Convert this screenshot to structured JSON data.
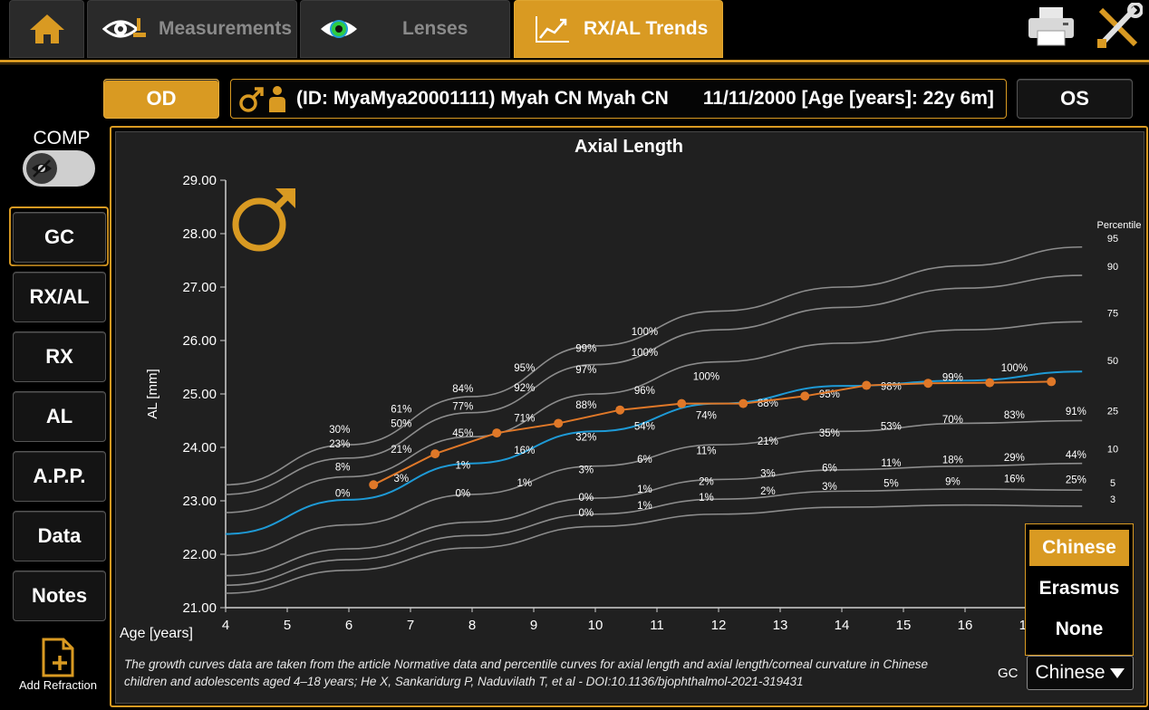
{
  "tabs": [
    {
      "label": ""
    },
    {
      "label": "Measurements"
    },
    {
      "label": "Lenses"
    },
    {
      "label": "RX/AL Trends"
    }
  ],
  "eye_buttons": {
    "od": "OD",
    "os": "OS"
  },
  "patient": {
    "text": "(ID: MyaMya20001111) Myah CN Myah CN",
    "dob": "11/11/2000 [Age [years]: 22y 6m]"
  },
  "comp": {
    "label": "COMP"
  },
  "sidebar": {
    "items": [
      {
        "label": "GC"
      },
      {
        "label": "RX/AL"
      },
      {
        "label": "RX"
      },
      {
        "label": "AL"
      },
      {
        "label": "A.P.P."
      },
      {
        "label": "Data"
      },
      {
        "label": "Notes"
      }
    ]
  },
  "add_refraction": {
    "label": "Add Refraction"
  },
  "gc_selector": {
    "label": "GC",
    "options": [
      "Chinese",
      "Erasmus",
      "None"
    ],
    "selected": "Chinese",
    "dropdown_value": "Chinese"
  },
  "footnote": {
    "line1": "The growth curves data are taken from the article Normative data and percentile curves for axial length and axial length/corneal curvature in Chinese",
    "line2": "children and adolescents aged 4–18 years; He X, Sankaridurg P, Naduvilath T, et al - DOI:10.1136/bjophthalmol-2021-319431"
  },
  "colors": {
    "accent": "#d99a22",
    "patient_line": "#e07828",
    "median_line": "#1e9ad6",
    "curves": "#8c8c8c"
  },
  "chart_data": {
    "type": "line",
    "title": "Axial Length",
    "xlabel": "Age [years]",
    "ylabel": "AL [mm]",
    "xlim": [
      4,
      17.9
    ],
    "ylim": [
      21.0,
      29.0
    ],
    "x_ticks": [
      4,
      5,
      6,
      7,
      8,
      9,
      10,
      11,
      12,
      13,
      14,
      15,
      16,
      17
    ],
    "y_ticks": [
      "21.00",
      "22.00",
      "23.00",
      "24.00",
      "25.00",
      "26.00",
      "27.00",
      "28.00",
      "29.00"
    ],
    "legend_title": "Percentile",
    "percentile_curves": [
      {
        "name": "95",
        "x": [
          4,
          6,
          8,
          10,
          12,
          14,
          16,
          17.9
        ],
        "values": [
          23.3,
          24.05,
          24.95,
          25.9,
          26.55,
          27.0,
          27.4,
          27.75
        ]
      },
      {
        "name": "90",
        "x": [
          4,
          6,
          8,
          10,
          12,
          14,
          16,
          17.9
        ],
        "values": [
          23.12,
          23.8,
          24.65,
          25.55,
          26.2,
          26.62,
          26.98,
          27.22
        ]
      },
      {
        "name": "75",
        "x": [
          4,
          6,
          8,
          10,
          12,
          14,
          16,
          17.9
        ],
        "values": [
          22.78,
          23.45,
          24.2,
          25.0,
          25.6,
          25.95,
          26.2,
          26.35
        ]
      },
      {
        "name": "50",
        "x": [
          4,
          6,
          8,
          10,
          12,
          14,
          16,
          17.9
        ],
        "values": [
          22.38,
          23.02,
          23.7,
          24.3,
          24.82,
          25.15,
          25.25,
          25.42
        ]
      },
      {
        "name": "25",
        "x": [
          4,
          6,
          8,
          10,
          12,
          14,
          16,
          17.9
        ],
        "values": [
          21.98,
          22.55,
          23.12,
          23.65,
          24.05,
          24.3,
          24.45,
          24.5
        ]
      },
      {
        "name": "10",
        "x": [
          4,
          6,
          8,
          10,
          12,
          14,
          16,
          17.9
        ],
        "values": [
          21.6,
          22.1,
          22.6,
          23.05,
          23.4,
          23.58,
          23.65,
          23.7
        ]
      },
      {
        "name": "5",
        "x": [
          4,
          6,
          8,
          10,
          12,
          14,
          16,
          17.9
        ],
        "values": [
          21.42,
          21.9,
          22.35,
          22.75,
          23.03,
          23.18,
          23.22,
          23.2
        ]
      },
      {
        "name": "3",
        "x": [
          4,
          6,
          8,
          10,
          12,
          14,
          16,
          17.9
        ],
        "values": [
          21.27,
          21.7,
          22.12,
          22.52,
          22.75,
          22.88,
          22.92,
          22.9
        ]
      }
    ],
    "patient_series": {
      "x": [
        6.4,
        7.4,
        8.4,
        9.4,
        10.4,
        11.4,
        12.4,
        13.4,
        14.4,
        15.4,
        16.4,
        17.4
      ],
      "values": [
        23.3,
        23.88,
        24.27,
        24.45,
        24.7,
        24.82,
        24.82,
        24.96,
        25.16,
        25.2,
        25.21,
        25.23
      ]
    },
    "annotations": [
      {
        "text": "30%",
        "x": 5.85,
        "y": 24.27
      },
      {
        "text": "23%",
        "x": 5.85,
        "y": 24.0
      },
      {
        "text": "8%",
        "x": 5.9,
        "y": 23.57
      },
      {
        "text": "0%",
        "x": 5.9,
        "y": 23.08
      },
      {
        "text": "61%",
        "x": 6.85,
        "y": 24.65
      },
      {
        "text": "50%",
        "x": 6.85,
        "y": 24.38
      },
      {
        "text": "21%",
        "x": 6.85,
        "y": 23.9
      },
      {
        "text": "3%",
        "x": 6.85,
        "y": 23.36
      },
      {
        "text": "84%",
        "x": 7.85,
        "y": 25.03
      },
      {
        "text": "77%",
        "x": 7.85,
        "y": 24.7
      },
      {
        "text": "45%",
        "x": 7.85,
        "y": 24.2
      },
      {
        "text": "1%",
        "x": 7.85,
        "y": 23.6
      },
      {
        "text": "0%",
        "x": 7.85,
        "y": 23.08
      },
      {
        "text": "95%",
        "x": 8.85,
        "y": 25.42
      },
      {
        "text": "92%",
        "x": 8.85,
        "y": 25.05
      },
      {
        "text": "71%",
        "x": 8.85,
        "y": 24.48
      },
      {
        "text": "16%",
        "x": 8.85,
        "y": 23.88
      },
      {
        "text": "1%",
        "x": 8.85,
        "y": 23.27
      },
      {
        "text": "99%",
        "x": 9.85,
        "y": 25.79
      },
      {
        "text": "97%",
        "x": 9.85,
        "y": 25.39
      },
      {
        "text": "88%",
        "x": 9.85,
        "y": 24.73
      },
      {
        "text": "32%",
        "x": 9.85,
        "y": 24.13
      },
      {
        "text": "3%",
        "x": 9.85,
        "y": 23.52
      },
      {
        "text": "0%",
        "x": 9.85,
        "y": 23.0
      },
      {
        "text": "0%",
        "x": 9.85,
        "y": 22.71
      },
      {
        "text": "100%",
        "x": 10.8,
        "y": 26.1
      },
      {
        "text": "100%",
        "x": 10.8,
        "y": 25.71
      },
      {
        "text": "96%",
        "x": 10.8,
        "y": 25.0
      },
      {
        "text": "54%",
        "x": 10.8,
        "y": 24.33
      },
      {
        "text": "6%",
        "x": 10.8,
        "y": 23.71
      },
      {
        "text": "1%",
        "x": 10.8,
        "y": 23.15
      },
      {
        "text": "1%",
        "x": 10.8,
        "y": 22.85
      },
      {
        "text": "100%",
        "x": 11.8,
        "y": 25.26
      },
      {
        "text": "74%",
        "x": 11.8,
        "y": 24.53
      },
      {
        "text": "11%",
        "x": 11.8,
        "y": 23.87
      },
      {
        "text": "2%",
        "x": 11.8,
        "y": 23.3
      },
      {
        "text": "1%",
        "x": 11.8,
        "y": 23.0
      },
      {
        "text": "88%",
        "x": 12.8,
        "y": 24.76
      },
      {
        "text": "21%",
        "x": 12.8,
        "y": 24.05
      },
      {
        "text": "3%",
        "x": 12.8,
        "y": 23.45
      },
      {
        "text": "2%",
        "x": 12.8,
        "y": 23.12
      },
      {
        "text": "95%",
        "x": 13.8,
        "y": 24.93
      },
      {
        "text": "35%",
        "x": 13.8,
        "y": 24.2
      },
      {
        "text": "6%",
        "x": 13.8,
        "y": 23.55
      },
      {
        "text": "3%",
        "x": 13.8,
        "y": 23.2
      },
      {
        "text": "98%",
        "x": 14.8,
        "y": 25.08
      },
      {
        "text": "53%",
        "x": 14.8,
        "y": 24.33
      },
      {
        "text": "11%",
        "x": 14.8,
        "y": 23.64
      },
      {
        "text": "5%",
        "x": 14.8,
        "y": 23.26
      },
      {
        "text": "99%",
        "x": 15.8,
        "y": 25.25
      },
      {
        "text": "70%",
        "x": 15.8,
        "y": 24.46
      },
      {
        "text": "18%",
        "x": 15.8,
        "y": 23.7
      },
      {
        "text": "9%",
        "x": 15.8,
        "y": 23.3
      },
      {
        "text": "100%",
        "x": 16.8,
        "y": 25.42
      },
      {
        "text": "83%",
        "x": 16.8,
        "y": 24.54
      },
      {
        "text": "29%",
        "x": 16.8,
        "y": 23.75
      },
      {
        "text": "16%",
        "x": 16.8,
        "y": 23.35
      },
      {
        "text": "91%",
        "x": 17.8,
        "y": 24.61
      },
      {
        "text": "44%",
        "x": 17.8,
        "y": 23.8
      },
      {
        "text": "25%",
        "x": 17.8,
        "y": 23.33
      }
    ]
  }
}
